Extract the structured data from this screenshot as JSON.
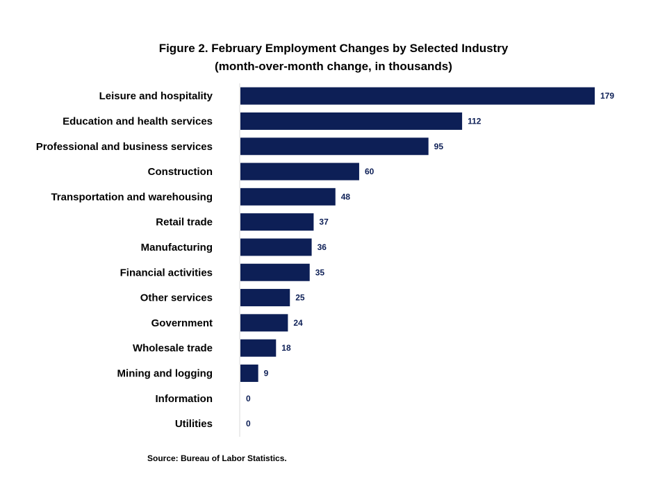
{
  "chart_data": {
    "type": "bar",
    "orientation": "horizontal",
    "title": "Figure 2. February Employment Changes by Selected Industry",
    "subtitle": "(month-over-month  change, in thousands)",
    "categories": [
      "Leisure and hospitality",
      "Education and health services",
      "Professional and business services",
      "Construction",
      "Transportation and warehousing",
      "Retail trade",
      "Manufacturing",
      "Financial activities",
      "Other services",
      "Government",
      "Wholesale trade",
      "Mining and logging",
      "Information",
      "Utilities"
    ],
    "values": [
      179,
      112,
      95,
      60,
      48,
      37,
      36,
      35,
      25,
      24,
      18,
      9,
      0,
      0
    ],
    "data_labels": [
      "179",
      "112",
      "95",
      "60",
      "48",
      "37",
      "36",
      "35",
      "25",
      "24",
      "18",
      "9",
      "0",
      "0"
    ],
    "xlim": [
      0,
      179
    ],
    "grid": false,
    "legend": "none",
    "bar_color": "#0d1f56",
    "source": "Source: Bureau of Labor Statistics."
  }
}
